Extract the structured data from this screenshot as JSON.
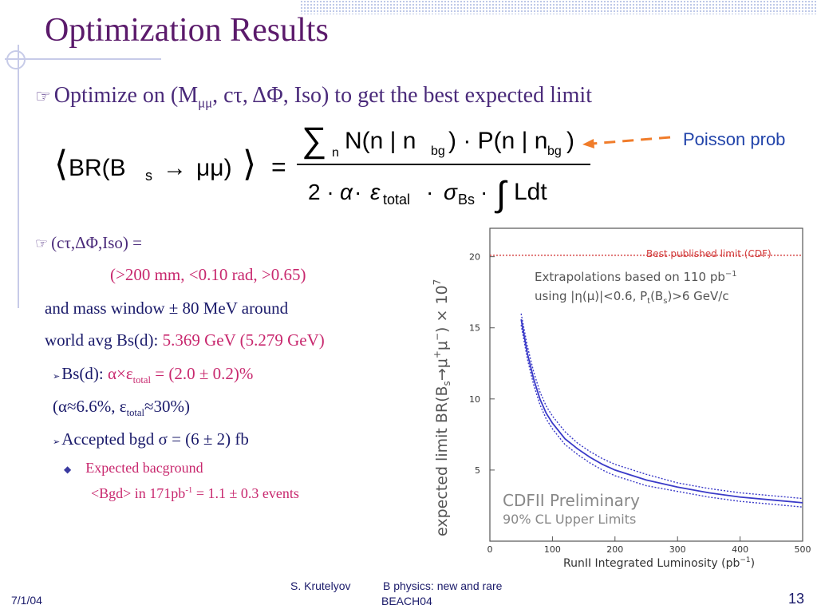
{
  "title": "Optimization Results",
  "bullet1": {
    "pre": "Optimize on (M",
    "sub": "μμ",
    "post": ", cτ, ΔΦ, Iso) to get the best expected limit"
  },
  "formula": {
    "lhs_br": "BR(B",
    "lhs_s": "s",
    "lhs_arrow": "→",
    "lhs_mumu": "μμ)",
    "equals": "=",
    "num_sum": "∑",
    "num_n": "n",
    "num_text": "N(n | n",
    "num_bg1": "bg",
    "num_mid": ") · P(n | n",
    "num_bg2": "bg",
    "num_close": ")",
    "den_2": "2 · ",
    "den_alpha": "α",
    "den_dot1": " · ",
    "den_eps": "ε",
    "den_total": "total",
    "den_dot2": " · ",
    "den_sigma": "σ",
    "den_bs": "Bs",
    "den_dot3": " · ",
    "den_int": "∫",
    "den_ldt": "Ldt"
  },
  "annotation": "Poisson prob",
  "lines": {
    "l1": "(cτ,ΔΦ,Iso) =",
    "l2": "(>200 mm, <0.10 rad, >0.65)",
    "l3": "and mass window ± 80 MeV around",
    "l4a": "world avg Bs(d): ",
    "l4b": "5.369 GeV (5.279 GeV)",
    "l5a": "Bs(d): ",
    "l5b": "α×ε",
    "l5sub": "total",
    "l5c": " = (2.0 ± 0.2)%",
    "l6a": "(α≈6.6%, ε",
    "l6sub": "total",
    "l6b": "≈30%)",
    "l7": "Accepted bgd σ = (6 ± 2) fb",
    "l8": "Expected bacground",
    "l9a": "<Bgd> in 171pb",
    "l9sup": "-1",
    "l9b": " = 1.1 ± 0.3 events"
  },
  "footer": {
    "date": "7/1/04",
    "author": "S. Krutelyov",
    "talk": "B physics: new and rare",
    "conf": "BEACH04",
    "page": "13"
  },
  "chart_data": {
    "type": "line",
    "ylabel_prefix": "expected limit BR(B",
    "ylabel_sub": "s",
    "ylabel_mid": "→μ",
    "ylabel_sup1": "+",
    "ylabel_mu2": "μ",
    "ylabel_sup2": "−",
    "ylabel_end": ") × 10",
    "ylabel_exp": "7",
    "xlabel": "RunII Integrated Luminosity (pb",
    "xlabel_sup": "−1",
    "xlabel_end": ")",
    "xlim": [
      0,
      500
    ],
    "ylim": [
      0,
      22
    ],
    "xticks": [
      0,
      100,
      200,
      300,
      400,
      500
    ],
    "yticks": [
      5,
      10,
      15,
      20
    ],
    "reference": {
      "label": "Best published limit (CDF)",
      "y": 20.1,
      "color": "#d23a3a"
    },
    "annotation1": "Extrapolations based on 110 pb",
    "annotation1_sup": "−1",
    "annotation2": "using |η(μ)|<0.6, P",
    "annotation2_sub": "t",
    "annotation2_end": "(B",
    "annotation2_sub2": "s",
    "annotation2_tail": ")>6 GeV/c",
    "watermark1": "CDFII Preliminary",
    "watermark2": "90% CL Upper Limits",
    "series": [
      {
        "style": "solid",
        "color": "#3a3ac8",
        "x": [
          50,
          60,
          70,
          80,
          90,
          100,
          120,
          140,
          160,
          180,
          200,
          250,
          300,
          350,
          400,
          450,
          500
        ],
        "y": [
          15.6,
          13.2,
          11.4,
          10.0,
          9.0,
          8.3,
          7.2,
          6.5,
          5.9,
          5.4,
          5.0,
          4.3,
          3.8,
          3.4,
          3.1,
          2.9,
          2.7
        ]
      },
      {
        "style": "dotted",
        "color": "#3a3ac8",
        "x": [
          50,
          60,
          70,
          80,
          90,
          100,
          120,
          140,
          160,
          180,
          200,
          250,
          300,
          350,
          400,
          450,
          500
        ],
        "y": [
          16.0,
          13.7,
          11.9,
          10.5,
          9.5,
          8.8,
          7.7,
          6.9,
          6.3,
          5.8,
          5.4,
          4.7,
          4.1,
          3.7,
          3.4,
          3.2,
          3.0
        ]
      },
      {
        "style": "dotted",
        "color": "#3a3ac8",
        "x": [
          50,
          60,
          70,
          80,
          90,
          100,
          120,
          140,
          160,
          180,
          200,
          250,
          300,
          350,
          400,
          450,
          500
        ],
        "y": [
          15.2,
          12.8,
          11.0,
          9.6,
          8.6,
          7.9,
          6.8,
          6.1,
          5.5,
          5.0,
          4.6,
          3.9,
          3.5,
          3.1,
          2.8,
          2.6,
          2.4
        ]
      }
    ]
  }
}
